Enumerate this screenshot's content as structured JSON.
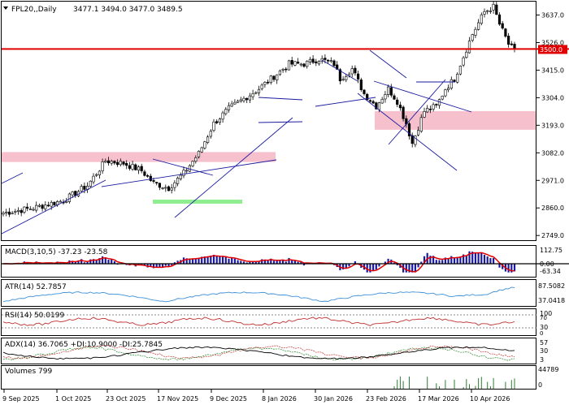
{
  "chart_data": {
    "type": "candlestick",
    "symbol": "FPL20,,Daily",
    "ohlc_header": "3477.1 3494.0 3477.0 3489.5",
    "current_price_label": "3500.0",
    "main_y_ticks": [
      "3637.0",
      "3526.0",
      "3415.0",
      "3304.0",
      "3193.0",
      "3082.0",
      "2971.0",
      "2860.0",
      "2749.0"
    ],
    "x_tick_labels": [
      "9 Sep 2025",
      "1 Oct 2025",
      "23 Oct 2025",
      "17 Nov 2025",
      "9 Dec 2025",
      "8 Jan 2026",
      "30 Jan 2026",
      "23 Feb 2026",
      "17 Mar 2026",
      "10 Apr 2026"
    ],
    "price_anchors": [
      [
        0,
        2840
      ],
      [
        10,
        2860
      ],
      [
        20,
        2890
      ],
      [
        28,
        2950
      ],
      [
        34,
        3050
      ],
      [
        40,
        3040
      ],
      [
        46,
        3010
      ],
      [
        50,
        2960
      ],
      [
        55,
        2940
      ],
      [
        60,
        3000
      ],
      [
        65,
        3080
      ],
      [
        70,
        3200
      ],
      [
        75,
        3260
      ],
      [
        80,
        3300
      ],
      [
        85,
        3340
      ],
      [
        90,
        3390
      ],
      [
        95,
        3440
      ],
      [
        100,
        3440
      ],
      [
        105,
        3460
      ],
      [
        110,
        3440
      ],
      [
        112,
        3380
      ],
      [
        116,
        3420
      ],
      [
        120,
        3320
      ],
      [
        124,
        3270
      ],
      [
        128,
        3340
      ],
      [
        131,
        3290
      ],
      [
        134,
        3200
      ],
      [
        136,
        3120
      ],
      [
        140,
        3250
      ],
      [
        144,
        3270
      ],
      [
        147,
        3340
      ],
      [
        150,
        3380
      ],
      [
        153,
        3470
      ],
      [
        156,
        3560
      ],
      [
        160,
        3650
      ],
      [
        163,
        3670
      ],
      [
        165,
        3600
      ],
      [
        168,
        3520
      ],
      [
        170,
        3490
      ]
    ],
    "key_levels": {
      "resistance_red": 3500,
      "zone_pink_upper": [
        3175,
        3250
      ],
      "zone_pink_lower": [
        3045,
        3085
      ],
      "zone_green": [
        2915,
        2925
      ]
    },
    "macd": {
      "label": "MACD(3,10,5) -37.23 -23.58",
      "ticks": [
        "112.75",
        "0.00",
        "-63.34"
      ]
    },
    "atr": {
      "label": "ATR(14) 52.7857",
      "ticks": [
        "87.5082",
        "37.0418"
      ]
    },
    "rsi": {
      "label": "RSI(14) 50.0199",
      "ticks": [
        "100",
        "70",
        "30",
        "0"
      ]
    },
    "adx": {
      "label": "ADX(14) 36.7065 +DI:10.9000 -DI:25.7845",
      "ticks": [
        "57",
        "30",
        "3"
      ]
    },
    "volumes": {
      "label": "Volumes 799",
      "ticks": [
        "44789",
        "0"
      ]
    }
  },
  "colors": {
    "resistance": "#e00000",
    "pink_zone": "#f6c0cc",
    "green_zone": "#90ee90",
    "trendline": "#1a1aa0",
    "macd_hist": "#1a1aa0",
    "macd_signal": "#e00000",
    "atr_line": "#3a8fd8",
    "rsi_line": "#c03030",
    "adx_line": "#000000",
    "volume_bar": "#2e7d32"
  }
}
